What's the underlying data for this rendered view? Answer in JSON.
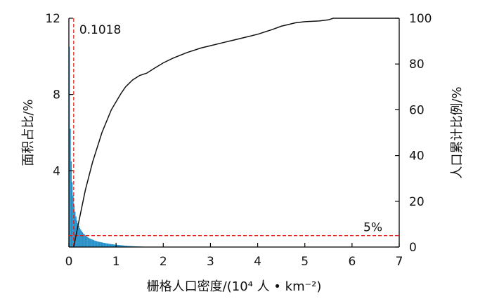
{
  "chart_data": {
    "type": "bar",
    "xlabel": "栅格人口密度/(10⁴ 人 • km⁻²)",
    "ylabel_left": "面积占比/%",
    "ylabel_right": "人口累计比例/%",
    "xlim": [
      0,
      7
    ],
    "ylim_left": [
      0,
      12
    ],
    "ylim_right": [
      0,
      100
    ],
    "x_ticks": [
      "0",
      "1",
      "2",
      "3",
      "4",
      "5",
      "6",
      "7"
    ],
    "y_left_ticks": [
      "4",
      "8",
      "12"
    ],
    "y_right_ticks": [
      "0",
      "20",
      "40",
      "60",
      "80",
      "100"
    ],
    "grid": false,
    "annotations": {
      "vline_label": "0.1018",
      "vline_x": 0.1018,
      "hline_label": "5%",
      "hline_y_right": 5
    },
    "histogram": {
      "name": "面积占比",
      "color": "#1f8fc9",
      "bin_width": 0.02,
      "x_start": 0,
      "values": [
        10.5,
        6.2,
        4.5,
        3.4,
        2.7,
        2.2,
        1.85,
        1.6,
        1.4,
        1.25,
        1.12,
        1.0,
        0.92,
        0.84,
        0.77,
        0.71,
        0.66,
        0.61,
        0.57,
        0.53,
        0.5,
        0.47,
        0.44,
        0.42,
        0.4,
        0.38,
        0.36,
        0.34,
        0.32,
        0.31,
        0.29,
        0.28,
        0.27,
        0.26,
        0.25,
        0.24,
        0.23,
        0.22,
        0.21,
        0.2,
        0.19,
        0.18,
        0.17,
        0.165,
        0.16,
        0.15,
        0.145,
        0.14,
        0.13,
        0.125,
        0.12,
        0.115,
        0.11,
        0.105,
        0.1,
        0.095,
        0.09,
        0.085,
        0.08,
        0.075,
        0.07,
        0.066,
        0.062,
        0.058,
        0.055,
        0.052,
        0.049,
        0.046,
        0.043,
        0.04,
        0.038,
        0.036,
        0.034,
        0.032,
        0.03,
        0.028,
        0.026,
        0.024,
        0.022,
        0.02,
        0.019,
        0.018,
        0.017,
        0.016,
        0.015,
        0.014,
        0.013,
        0.012,
        0.011,
        0.01,
        0.01,
        0.009,
        0.009,
        0.008,
        0.008,
        0.007,
        0.007,
        0.006,
        0.006,
        0.005
      ]
    },
    "cumulative": {
      "name": "人口累计比例",
      "color": "#111111",
      "x": [
        0.1018,
        0.2,
        0.35,
        0.5,
        0.7,
        0.9,
        1.1,
        1.2,
        1.35,
        1.5,
        1.65,
        1.8,
        2.0,
        2.2,
        2.5,
        2.8,
        3.0,
        3.3,
        3.5,
        3.8,
        4.0,
        4.3,
        4.5,
        4.8,
        5.0,
        5.3,
        5.5,
        5.6,
        5.8,
        6.2,
        7.0
      ],
      "y": [
        0,
        10,
        25,
        37,
        50,
        60,
        67,
        70,
        73,
        75,
        76,
        78,
        80.5,
        82.5,
        85,
        87,
        88,
        89.5,
        90.5,
        92,
        93,
        95,
        96.5,
        98,
        98.5,
        98.8,
        99.3,
        100,
        100,
        100,
        100
      ]
    }
  }
}
